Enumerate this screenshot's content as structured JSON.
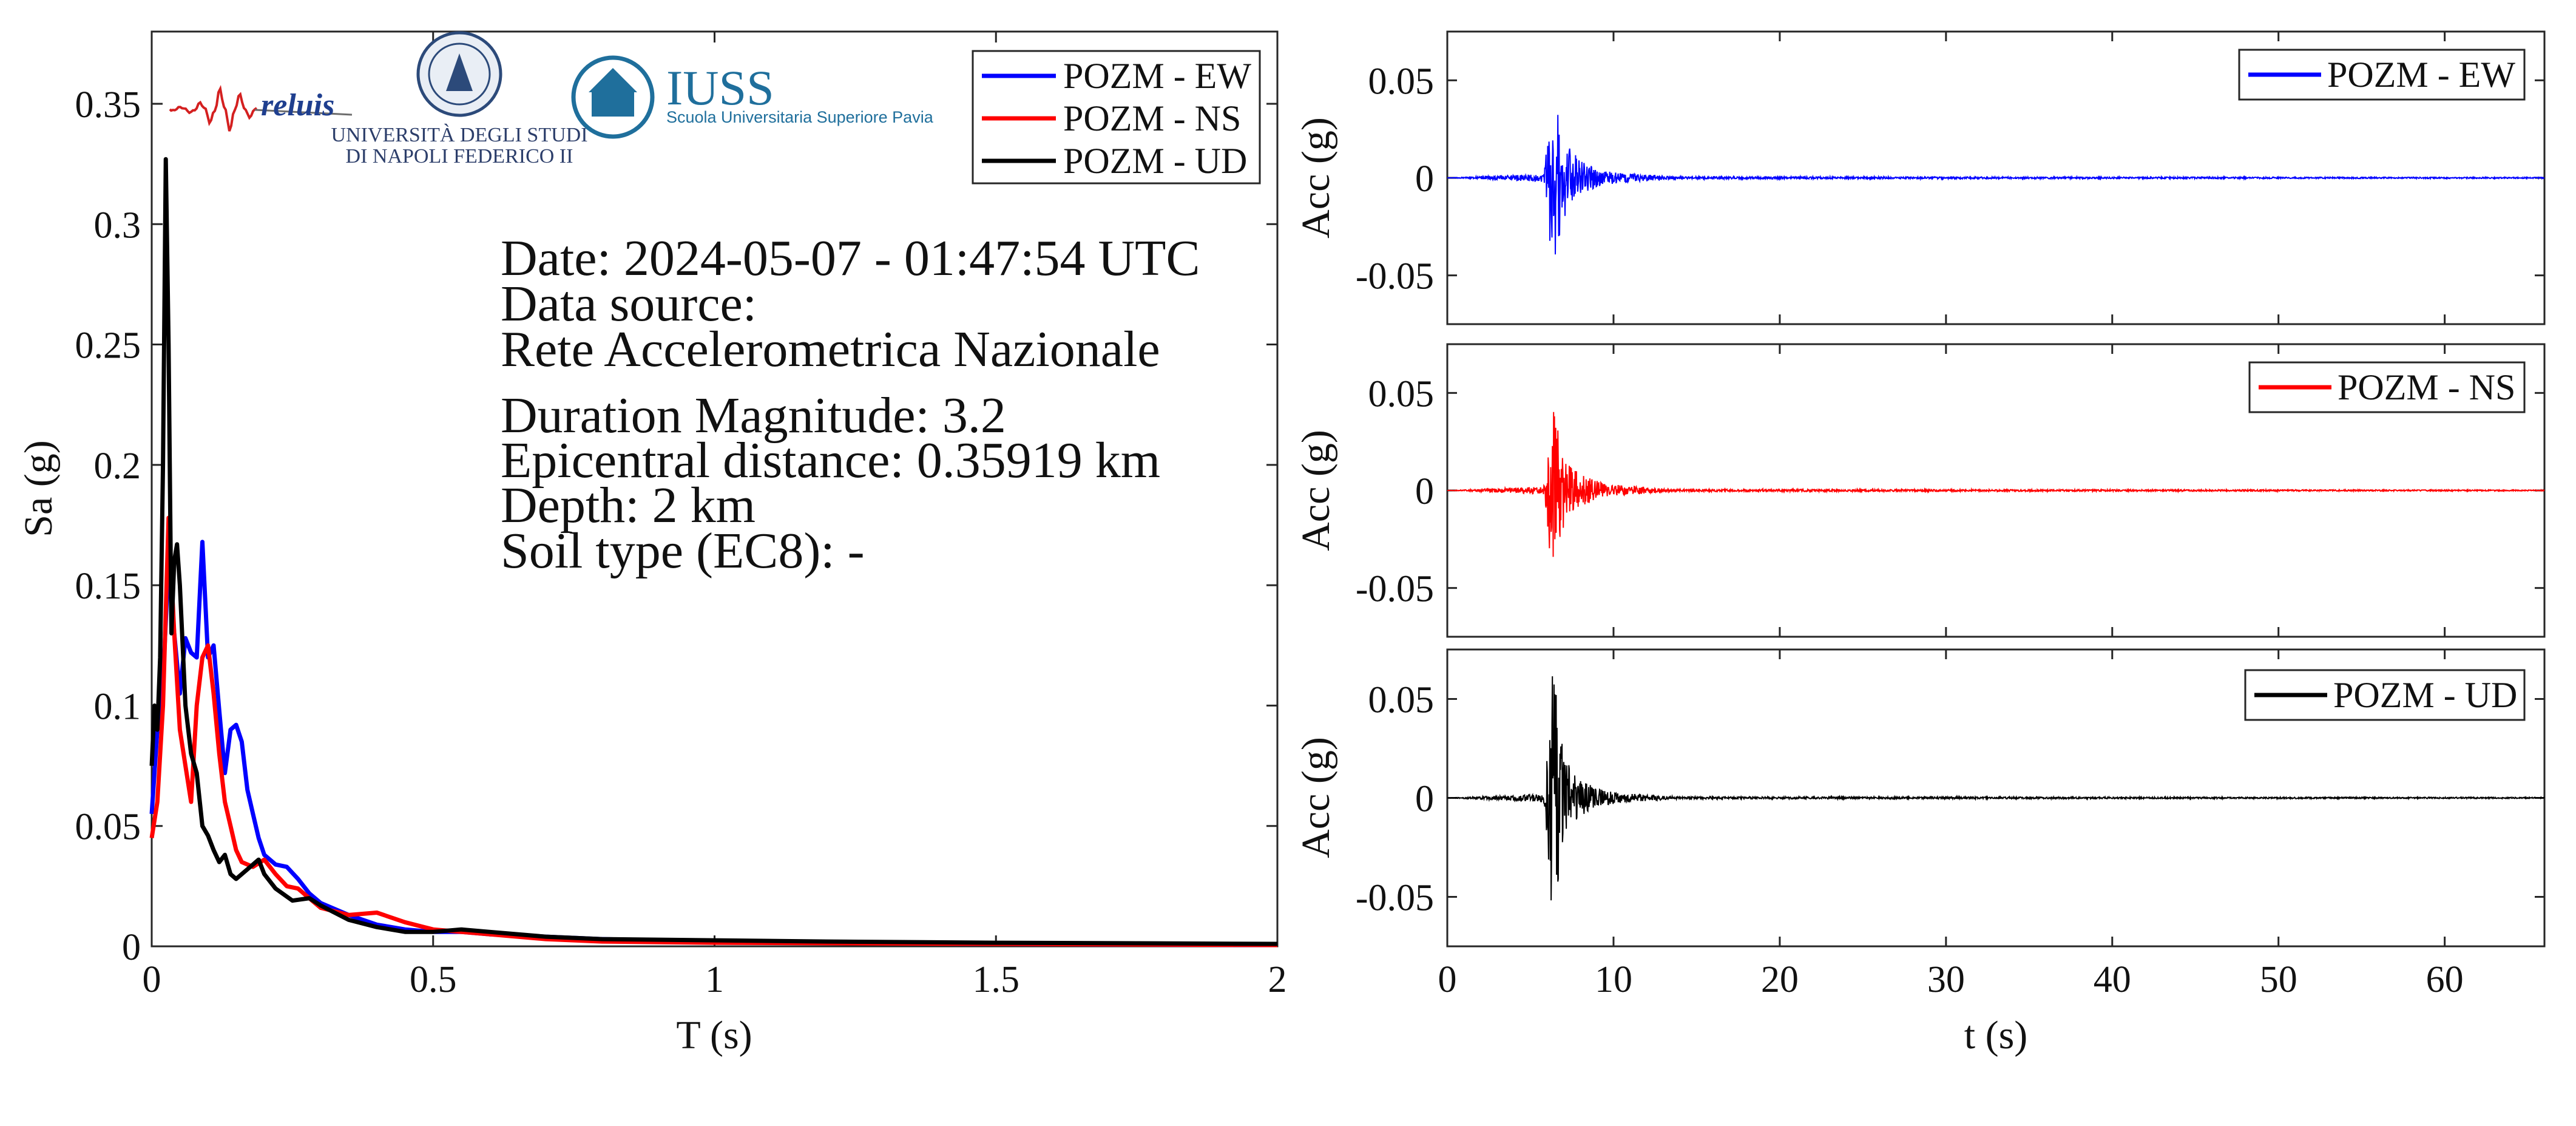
{
  "colors": {
    "EW": "#0000ff",
    "NS": "#ff0000",
    "UD": "#000000"
  },
  "logos": {
    "reluis": "reluis",
    "unina": [
      "UNIVERSITÀ DEGLI STUDI",
      "DI NAPOLI FEDERICO II"
    ],
    "iuss": "IUSS",
    "iuss_sub": "Scuola Universitaria Superiore Pavia"
  },
  "info": {
    "date": "Date: 2024-05-07 - 01:47:54 UTC",
    "source_label": "Data source:",
    "source": "Rete Accelerometrica Nazionale",
    "magnitude": "Duration Magnitude: 3.2",
    "distance": "Epicentral distance: 0.35919 km",
    "depth": "Depth: 2 km",
    "soil": "Soil type (EC8): -"
  },
  "chart_data": [
    {
      "type": "line",
      "xlabel": "T (s)",
      "ylabel": "Sa (g)",
      "xlim": [
        0,
        2
      ],
      "ylim": [
        0,
        0.38
      ],
      "xticks": [
        0,
        0.5,
        1,
        1.5,
        2
      ],
      "xtick_labels": [
        "0",
        "0.5",
        "1",
        "1.5",
        "2"
      ],
      "yticks": [
        0,
        0.05,
        0.1,
        0.15,
        0.2,
        0.25,
        0.3,
        0.35
      ],
      "ytick_labels": [
        "0",
        "0.05",
        "0.1",
        "0.15",
        "0.2",
        "0.25",
        "0.3",
        "0.35"
      ],
      "legend": "top-right",
      "series": [
        {
          "name": "POZM - EW",
          "color": "#0000ff",
          "x": [
            0,
            0.01,
            0.02,
            0.03,
            0.04,
            0.05,
            0.06,
            0.07,
            0.08,
            0.09,
            0.1,
            0.11,
            0.12,
            0.13,
            0.14,
            0.15,
            0.16,
            0.17,
            0.18,
            0.19,
            0.2,
            0.22,
            0.24,
            0.26,
            0.28,
            0.3,
            0.35,
            0.4,
            0.45,
            0.5,
            0.55,
            0.6,
            0.7,
            0.8,
            1.0,
            1.2,
            1.5,
            2.0
          ],
          "y": [
            0.055,
            0.09,
            0.11,
            0.16,
            0.13,
            0.105,
            0.128,
            0.122,
            0.12,
            0.168,
            0.12,
            0.125,
            0.098,
            0.072,
            0.09,
            0.092,
            0.085,
            0.065,
            0.055,
            0.045,
            0.038,
            0.034,
            0.033,
            0.028,
            0.022,
            0.018,
            0.013,
            0.009,
            0.007,
            0.006,
            0.006,
            0.005,
            0.004,
            0.003,
            0.002,
            0.0015,
            0.001,
            0.0005
          ]
        },
        {
          "name": "POZM - NS",
          "color": "#ff0000",
          "x": [
            0,
            0.01,
            0.02,
            0.03,
            0.04,
            0.05,
            0.06,
            0.07,
            0.08,
            0.09,
            0.1,
            0.11,
            0.12,
            0.13,
            0.14,
            0.15,
            0.16,
            0.18,
            0.2,
            0.22,
            0.24,
            0.26,
            0.28,
            0.3,
            0.35,
            0.4,
            0.45,
            0.5,
            0.6,
            0.7,
            0.8,
            1.0,
            1.5,
            2.0
          ],
          "y": [
            0.045,
            0.06,
            0.1,
            0.178,
            0.13,
            0.09,
            0.075,
            0.06,
            0.1,
            0.12,
            0.125,
            0.105,
            0.08,
            0.06,
            0.05,
            0.04,
            0.035,
            0.033,
            0.036,
            0.03,
            0.025,
            0.024,
            0.02,
            0.016,
            0.013,
            0.014,
            0.01,
            0.007,
            0.005,
            0.003,
            0.002,
            0.0015,
            0.001,
            0.0005
          ]
        },
        {
          "name": "POZM - UD",
          "color": "#000000",
          "x": [
            0,
            0.005,
            0.01,
            0.015,
            0.02,
            0.025,
            0.03,
            0.035,
            0.04,
            0.045,
            0.05,
            0.06,
            0.07,
            0.08,
            0.09,
            0.1,
            0.11,
            0.12,
            0.13,
            0.14,
            0.15,
            0.17,
            0.19,
            0.2,
            0.22,
            0.25,
            0.28,
            0.3,
            0.35,
            0.4,
            0.45,
            0.5,
            0.55,
            0.6,
            0.7,
            0.8,
            1.0,
            1.2,
            1.5,
            2.0
          ],
          "y": [
            0.075,
            0.1,
            0.09,
            0.12,
            0.2,
            0.327,
            0.25,
            0.13,
            0.16,
            0.167,
            0.15,
            0.1,
            0.08,
            0.072,
            0.05,
            0.046,
            0.04,
            0.035,
            0.038,
            0.03,
            0.028,
            0.032,
            0.036,
            0.03,
            0.024,
            0.019,
            0.02,
            0.017,
            0.011,
            0.008,
            0.006,
            0.006,
            0.007,
            0.006,
            0.004,
            0.003,
            0.0025,
            0.002,
            0.0015,
            0.001
          ]
        }
      ]
    },
    {
      "type": "line",
      "ylabel": "Acc (g)",
      "xlim": [
        0,
        66
      ],
      "ylim": [
        -0.075,
        0.075
      ],
      "yticks": [
        -0.05,
        0,
        0.05
      ],
      "ytick_labels": [
        "-0.05",
        "0",
        "0.05"
      ],
      "legend": "top-right",
      "series": [
        {
          "name": "POZM - EW",
          "color": "#0000ff",
          "x": [
            0,
            5.8,
            6.0,
            6.2,
            6.4,
            6.6,
            7.0,
            7.5,
            8.0,
            9.0,
            10.0,
            12.0,
            14.0,
            66.0
          ],
          "envelope": [
            0,
            0.002,
            0.018,
            0.045,
            0.055,
            0.04,
            0.022,
            0.014,
            0.009,
            0.005,
            0.003,
            0.0015,
            0.0006,
            0.0003
          ]
        }
      ]
    },
    {
      "type": "line",
      "ylabel": "Acc (g)",
      "xlim": [
        0,
        66
      ],
      "ylim": [
        -0.075,
        0.075
      ],
      "yticks": [
        -0.05,
        0,
        0.05
      ],
      "ytick_labels": [
        "-0.05",
        "0",
        "0.05"
      ],
      "legend": "top-right",
      "series": [
        {
          "name": "POZM - NS",
          "color": "#ff0000",
          "x": [
            0,
            5.8,
            6.0,
            6.2,
            6.4,
            6.6,
            7.0,
            7.5,
            8.0,
            9.0,
            10.0,
            12.0,
            14.0,
            66.0
          ],
          "envelope": [
            0,
            0.002,
            0.015,
            0.038,
            0.045,
            0.035,
            0.02,
            0.013,
            0.008,
            0.005,
            0.003,
            0.0015,
            0.0006,
            0.0003
          ]
        }
      ]
    },
    {
      "type": "line",
      "xlabel": "t (s)",
      "ylabel": "Acc (g)",
      "xlim": [
        0,
        66
      ],
      "ylim": [
        -0.075,
        0.075
      ],
      "xticks": [
        0,
        10,
        20,
        30,
        40,
        50,
        60
      ],
      "xtick_labels": [
        "0",
        "10",
        "20",
        "30",
        "40",
        "50",
        "60"
      ],
      "yticks": [
        -0.05,
        0,
        0.05
      ],
      "ytick_labels": [
        "-0.05",
        "0",
        "0.05"
      ],
      "legend": "top-right",
      "series": [
        {
          "name": "POZM - UD",
          "color": "#000000",
          "x": [
            0,
            5.8,
            6.0,
            6.2,
            6.4,
            6.6,
            7.0,
            7.5,
            8.0,
            9.0,
            10.0,
            12.0,
            14.0,
            66.0
          ],
          "envelope": [
            0,
            0.002,
            0.02,
            0.05,
            0.075,
            0.045,
            0.025,
            0.014,
            0.009,
            0.005,
            0.003,
            0.0015,
            0.0006,
            0.0003
          ]
        }
      ]
    }
  ]
}
